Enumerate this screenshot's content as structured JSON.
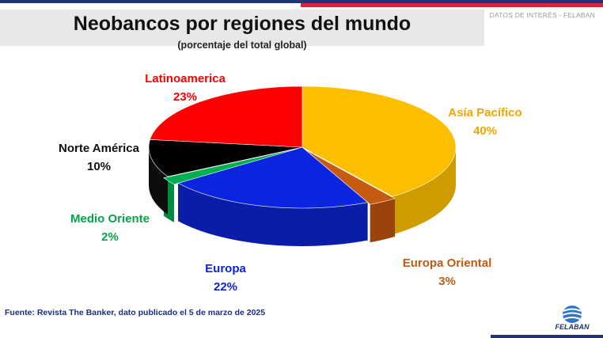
{
  "header": {
    "title": "Neobancos por regiones del mundo",
    "subtitle": "(porcentaje del total global)",
    "tag": "DATOS DE INTERÉS - FELABAN"
  },
  "footer": {
    "source": "Fuente: Revista The Banker, dato publicado el 5 de marzo de 2025",
    "logo_text": "FELABAN"
  },
  "chart_data": {
    "type": "pie",
    "style": "3d",
    "title": "Neobancos por regiones del mundo",
    "subtitle": "(porcentaje del total global)",
    "slices": [
      {
        "label": "Asía Pacífico",
        "value": 40,
        "value_label": "40%",
        "color": "#fbbf00",
        "side": "#cf9c00"
      },
      {
        "label": "Europa Oriental",
        "value": 3,
        "value_label": "3%",
        "color": "#c55a11",
        "side": "#9a430b"
      },
      {
        "label": "Europa",
        "value": 22,
        "value_label": "22%",
        "color": "#0b24e0",
        "side": "#0a1da8"
      },
      {
        "label": "Medio Oriente",
        "value": 2,
        "value_label": "2%",
        "color": "#00b050",
        "side": "#008a3e"
      },
      {
        "label": "Norte América",
        "value": 10,
        "value_label": "10%",
        "color": "#000000",
        "side": "#0d0d0d"
      },
      {
        "label": "Latinoamerica",
        "value": 23,
        "value_label": "23%",
        "color": "#ff0000",
        "side": "#c00000"
      }
    ]
  }
}
